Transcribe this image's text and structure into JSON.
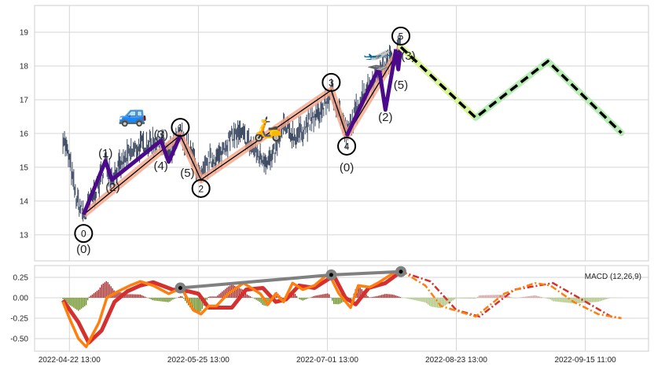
{
  "chart_data": [
    {
      "type": "line",
      "title": "",
      "subtype": "price-with-elliott-waves",
      "xlabel": "",
      "ylabel": "",
      "xlim": [
        -27,
        449
      ],
      "ylim": [
        12.23,
        19.79
      ],
      "yticks": [
        13,
        14,
        15,
        16,
        17,
        18,
        19
      ],
      "grid": true,
      "price_color": "#3d4a63",
      "price_path": [
        [
          -5,
          15.93
        ],
        [
          0,
          15.2
        ],
        [
          5,
          14.1
        ],
        [
          11,
          13.6
        ],
        [
          23,
          14.5
        ],
        [
          28,
          15.2
        ],
        [
          33,
          14.7
        ],
        [
          47,
          15.4
        ],
        [
          56,
          15.65
        ],
        [
          71,
          15.8
        ],
        [
          77,
          15.3
        ],
        [
          86,
          15.95
        ],
        [
          96,
          15.3
        ],
        [
          102,
          14.63
        ],
        [
          108,
          15.2
        ],
        [
          117,
          15.3
        ],
        [
          120,
          15.65
        ],
        [
          129,
          16.0
        ],
        [
          135,
          15.9
        ],
        [
          148,
          15.3
        ],
        [
          157,
          15.2
        ],
        [
          166,
          16.2
        ],
        [
          175,
          15.9
        ],
        [
          187,
          16.35
        ],
        [
          196,
          16.7
        ],
        [
          203,
          17.2
        ],
        [
          209,
          16.7
        ],
        [
          215,
          15.93
        ],
        [
          227,
          17.15
        ],
        [
          239,
          17.75
        ],
        [
          251,
          18.3
        ],
        [
          257,
          18.56
        ]
      ],
      "main_wave": {
        "points": [
          [
            11,
            13.6
          ],
          [
            86,
            15.95
          ],
          [
            102,
            14.63
          ],
          [
            203,
            17.28
          ],
          [
            215,
            15.93
          ],
          [
            257,
            18.56
          ]
        ],
        "labels": [
          "0",
          "1",
          "2",
          "3",
          "4",
          "5"
        ],
        "color": "#f4a58a"
      },
      "sub_wave_1": {
        "points": [
          [
            11,
            13.6
          ],
          [
            28,
            15.19
          ],
          [
            33,
            14.63
          ],
          [
            71,
            15.79
          ],
          [
            77,
            15.16
          ],
          [
            86,
            15.95
          ]
        ],
        "labels": [
          "(0)",
          "(1)",
          "(2)",
          "(3)",
          "(4)",
          "(5)"
        ],
        "color": "#4b0a8a"
      },
      "sub_wave_5": {
        "points": [
          [
            215,
            15.93
          ],
          [
            240,
            17.95
          ],
          [
            245,
            16.7
          ],
          [
            253,
            18.44
          ],
          [
            255,
            17.9
          ],
          [
            257,
            18.56
          ]
        ],
        "labels": [
          "(0)",
          "(1)",
          "(2)",
          "(3)",
          "(4)",
          "(5)"
        ],
        "color": "#4b0a8a"
      },
      "forecast": {
        "points": [
          [
            257,
            18.56
          ],
          [
            315,
            16.47
          ],
          [
            371,
            18.14
          ],
          [
            428,
            16.02
          ]
        ],
        "colors": [
          "#d9f59a",
          "#b8ecb4",
          "#b8ecb4"
        ]
      },
      "annotations": [
        {
          "emoji": "🚙",
          "name": "car",
          "x": 49,
          "y": 16.35
        },
        {
          "emoji": "🛵",
          "name": "scooter",
          "x": 154,
          "y": 15.9
        },
        {
          "emoji": "🛫",
          "name": "airplane",
          "x": 239,
          "y": 18.0
        }
      ]
    },
    {
      "type": "line",
      "subtype": "macd",
      "legend": "MACD (12,26,9)",
      "legend_position": "top-right",
      "xlim": [
        -27,
        449
      ],
      "ylim": [
        -0.6,
        0.45
      ],
      "yticks": [
        0.25,
        0.0,
        -0.25,
        -0.5
      ],
      "ytick_labels": [
        "0.25",
        "0.00",
        "-0.25",
        "-0.50"
      ],
      "xticks": [
        0,
        100,
        200,
        300,
        400
      ],
      "xtick_labels": [
        "2022-04-22 13:00",
        "2022-05-25 13:00",
        "2022-07-01 13:00",
        "2022-08-23 13:00",
        "2022-09-15 11:00"
      ],
      "grid": true,
      "forecast_start": 257,
      "macd": {
        "color": "#ff7f0e",
        "values": [
          [
            -5,
            -0.05
          ],
          [
            0,
            -0.25
          ],
          [
            7,
            -0.5
          ],
          [
            13,
            -0.6
          ],
          [
            23,
            -0.3
          ],
          [
            29,
            0.0
          ],
          [
            38,
            0.08
          ],
          [
            47,
            0.15
          ],
          [
            55,
            0.2
          ],
          [
            65,
            0.15
          ],
          [
            77,
            0.05
          ],
          [
            87,
            0.12
          ],
          [
            96,
            -0.15
          ],
          [
            102,
            -0.2
          ],
          [
            108,
            -0.1
          ],
          [
            114,
            -0.1
          ],
          [
            123,
            0.05
          ],
          [
            135,
            0.18
          ],
          [
            148,
            0.05
          ],
          [
            154,
            -0.08
          ],
          [
            160,
            0.05
          ],
          [
            166,
            -0.05
          ],
          [
            173,
            0.18
          ],
          [
            181,
            0.1
          ],
          [
            190,
            0.15
          ],
          [
            201,
            0.3
          ],
          [
            209,
            0.05
          ],
          [
            218,
            -0.12
          ],
          [
            224,
            0.15
          ],
          [
            233,
            0.13
          ],
          [
            239,
            0.18
          ],
          [
            251,
            0.3
          ],
          [
            257,
            0.33
          ],
          [
            276,
            0.15
          ],
          [
            288,
            -0.1
          ],
          [
            315,
            -0.23
          ],
          [
            337,
            0.05
          ],
          [
            361,
            0.18
          ],
          [
            373,
            0.15
          ],
          [
            391,
            -0.05
          ],
          [
            410,
            -0.2
          ],
          [
            428,
            -0.25
          ]
        ]
      },
      "signal": {
        "color": "#d62f2f",
        "values": [
          [
            -5,
            -0.03
          ],
          [
            7,
            -0.3
          ],
          [
            15,
            -0.55
          ],
          [
            25,
            -0.4
          ],
          [
            35,
            -0.05
          ],
          [
            45,
            0.08
          ],
          [
            55,
            0.15
          ],
          [
            65,
            0.19
          ],
          [
            80,
            0.1
          ],
          [
            92,
            0.08
          ],
          [
            100,
            0.05
          ],
          [
            108,
            -0.12
          ],
          [
            116,
            -0.12
          ],
          [
            126,
            -0.12
          ],
          [
            137,
            0.1
          ],
          [
            150,
            0.12
          ],
          [
            160,
            -0.05
          ],
          [
            168,
            -0.02
          ],
          [
            178,
            0.15
          ],
          [
            190,
            0.12
          ],
          [
            205,
            0.27
          ],
          [
            214,
            0.0
          ],
          [
            222,
            -0.08
          ],
          [
            232,
            0.12
          ],
          [
            245,
            0.18
          ],
          [
            257,
            0.32
          ],
          [
            280,
            0.2
          ],
          [
            300,
            -0.15
          ],
          [
            318,
            -0.23
          ],
          [
            345,
            0.1
          ],
          [
            375,
            0.18
          ],
          [
            395,
            0.0
          ],
          [
            420,
            -0.23
          ],
          [
            428,
            -0.25
          ]
        ]
      },
      "histogram_colors": {
        "positive": "#a52a2a",
        "negative": "#6b8e23",
        "forecast_positive": "#d39a9a",
        "forecast_negative": "#a9c27a"
      },
      "divergence_line": {
        "color": "#808080",
        "points": [
          [
            86,
            0.12
          ],
          [
            203,
            0.28
          ],
          [
            257,
            0.32
          ]
        ]
      }
    }
  ]
}
